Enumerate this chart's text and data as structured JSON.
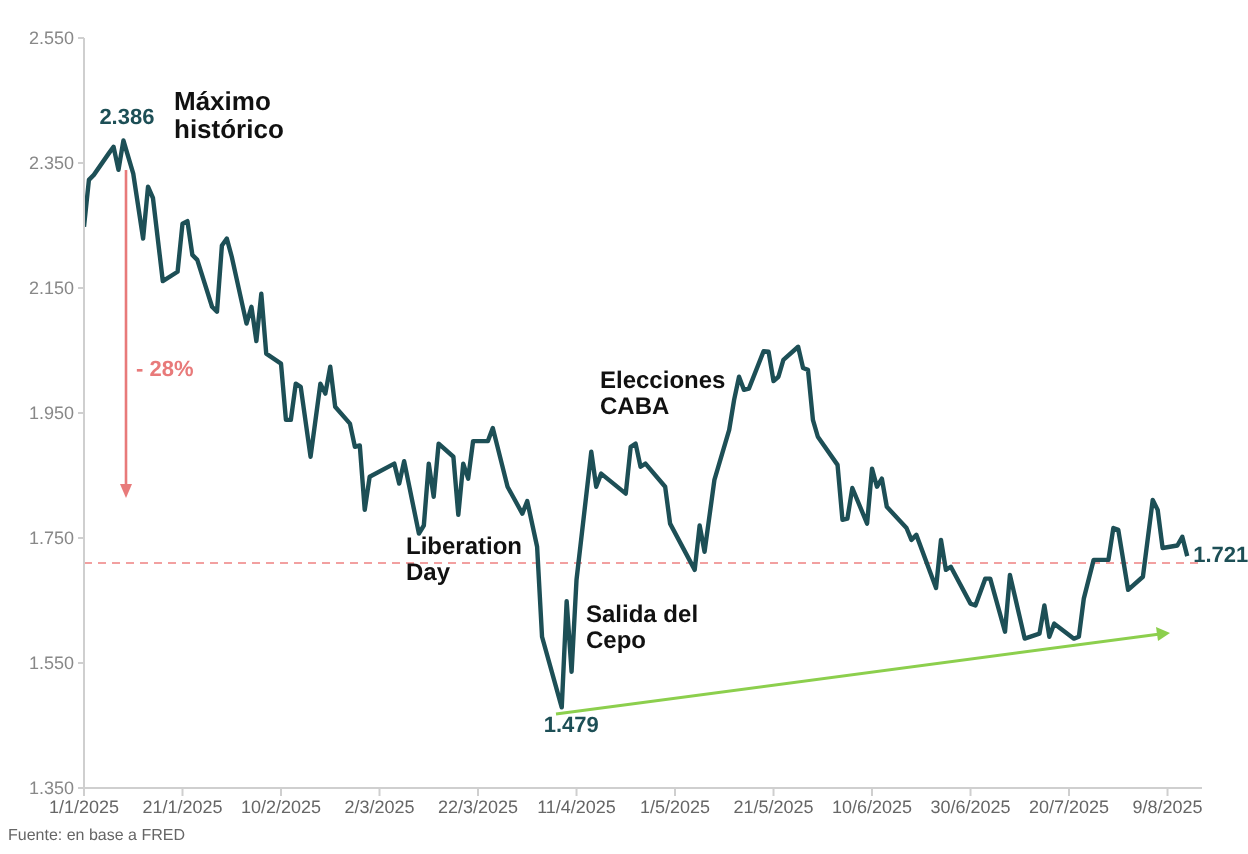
{
  "chart_data": {
    "type": "line",
    "x": [
      "2025-01-01",
      "2025-01-02",
      "2025-01-03",
      "2025-01-06",
      "2025-01-07",
      "2025-01-08",
      "2025-01-09",
      "2025-01-11",
      "2025-01-13",
      "2025-01-14",
      "2025-01-15",
      "2025-01-17",
      "2025-01-20",
      "2025-01-21",
      "2025-01-22",
      "2025-01-23",
      "2025-01-24",
      "2025-01-27",
      "2025-01-28",
      "2025-01-29",
      "2025-01-30",
      "2025-01-31",
      "2025-02-03",
      "2025-02-04",
      "2025-02-05",
      "2025-02-06",
      "2025-02-07",
      "2025-02-10",
      "2025-02-11",
      "2025-02-12",
      "2025-02-13",
      "2025-02-14",
      "2025-02-16",
      "2025-02-18",
      "2025-02-19",
      "2025-02-20",
      "2025-02-21",
      "2025-02-24",
      "2025-02-25",
      "2025-02-26",
      "2025-02-27",
      "2025-02-28",
      "2025-03-05",
      "2025-03-06",
      "2025-03-07",
      "2025-03-10",
      "2025-03-11",
      "2025-03-12",
      "2025-03-13",
      "2025-03-14",
      "2025-03-17",
      "2025-03-18",
      "2025-03-19",
      "2025-03-20",
      "2025-03-21",
      "2025-03-24",
      "2025-03-25",
      "2025-03-28",
      "2025-03-31",
      "2025-04-01",
      "2025-04-03",
      "2025-04-04",
      "2025-04-08",
      "2025-04-09",
      "2025-04-10",
      "2025-04-11",
      "2025-04-14",
      "2025-04-15",
      "2025-04-16",
      "2025-04-21",
      "2025-04-22",
      "2025-04-23",
      "2025-04-24",
      "2025-04-25",
      "2025-04-29",
      "2025-04-30",
      "2025-05-05",
      "2025-05-06",
      "2025-05-07",
      "2025-05-09",
      "2025-05-12",
      "2025-05-13",
      "2025-05-14",
      "2025-05-15",
      "2025-05-16",
      "2025-05-19",
      "2025-05-20",
      "2025-05-21",
      "2025-05-22",
      "2025-05-23",
      "2025-05-26",
      "2025-05-27",
      "2025-05-28",
      "2025-05-29",
      "2025-05-30",
      "2025-06-03",
      "2025-06-04",
      "2025-06-05",
      "2025-06-06",
      "2025-06-09",
      "2025-06-10",
      "2025-06-11",
      "2025-06-12",
      "2025-06-13",
      "2025-06-17",
      "2025-06-18",
      "2025-06-19",
      "2025-06-23",
      "2025-06-24",
      "2025-06-25",
      "2025-06-26",
      "2025-06-30",
      "2025-07-01",
      "2025-07-03",
      "2025-07-04",
      "2025-07-07",
      "2025-07-08",
      "2025-07-11",
      "2025-07-14",
      "2025-07-15",
      "2025-07-16",
      "2025-07-17",
      "2025-07-21",
      "2025-07-22",
      "2025-07-23",
      "2025-07-25",
      "2025-07-28",
      "2025-07-29",
      "2025-07-30",
      "2025-08-01",
      "2025-08-04",
      "2025-08-06",
      "2025-08-07",
      "2025-08-08",
      "2025-08-11",
      "2025-08-12",
      "2025-08-13"
    ],
    "series": [
      {
        "color": "#1d4f56",
        "values": [
          2248,
          2323,
          2331,
          2365,
          2376,
          2339,
          2386,
          2333,
          2229,
          2312,
          2294,
          2161,
          2176,
          2253,
          2257,
          2203,
          2195,
          2120,
          2112,
          2218,
          2229,
          2200,
          2093,
          2120,
          2065,
          2141,
          2045,
          2029,
          1939,
          1939,
          1997,
          1992,
          1880,
          1997,
          1981,
          2024,
          1960,
          1933,
          1896,
          1898,
          1795,
          1848,
          1869,
          1837,
          1873,
          1757,
          1770,
          1869,
          1816,
          1901,
          1880,
          1787,
          1869,
          1845,
          1905,
          1905,
          1926,
          1832,
          1789,
          1809,
          1736,
          1592,
          1479,
          1649,
          1536,
          1683,
          1888,
          1832,
          1853,
          1821,
          1896,
          1901,
          1864,
          1869,
          1832,
          1773,
          1699,
          1770,
          1728,
          1843,
          1923,
          1971,
          2008,
          1987,
          1989,
          2049,
          2048,
          2001,
          2008,
          2035,
          2056,
          2022,
          2019,
          1939,
          1912,
          1867,
          1779,
          1781,
          1830,
          1773,
          1861,
          1832,
          1845,
          1800,
          1766,
          1747,
          1755,
          1670,
          1747,
          1699,
          1704,
          1645,
          1642,
          1685,
          1685,
          1600,
          1691,
          1589,
          1597,
          1642,
          1592,
          1613,
          1589,
          1592,
          1653,
          1715,
          1715,
          1766,
          1763,
          1667,
          1688,
          1811,
          1795,
          1734,
          1738,
          1752,
          1721
        ]
      }
    ],
    "xlim": [
      "2025-01-01",
      "2025-08-16"
    ],
    "xticks": [
      {
        "value": "2025-01-01",
        "label": "1/1/2025"
      },
      {
        "value": "2025-01-21",
        "label": "21/1/2025"
      },
      {
        "value": "2025-02-10",
        "label": "10/2/2025"
      },
      {
        "value": "2025-03-02",
        "label": "2/3/2025"
      },
      {
        "value": "2025-03-22",
        "label": "22/3/2025"
      },
      {
        "value": "2025-04-11",
        "label": "11/4/2025"
      },
      {
        "value": "2025-05-01",
        "label": "1/5/2025"
      },
      {
        "value": "2025-05-21",
        "label": "21/5/2025"
      },
      {
        "value": "2025-06-10",
        "label": "10/6/2025"
      },
      {
        "value": "2025-06-30",
        "label": "30/6/2025"
      },
      {
        "value": "2025-07-20",
        "label": "20/7/2025"
      },
      {
        "value": "2025-08-09",
        "label": "9/8/2025"
      }
    ],
    "ylim": [
      1350,
      2550
    ],
    "yticks": [
      {
        "value": 1350,
        "label": "1.350"
      },
      {
        "value": 1550,
        "label": "1.550"
      },
      {
        "value": 1750,
        "label": "1.750"
      },
      {
        "value": 1950,
        "label": "1.950"
      },
      {
        "value": 2150,
        "label": "2.150"
      },
      {
        "value": 2350,
        "label": "2.350"
      },
      {
        "value": 2550,
        "label": "2.550"
      }
    ],
    "ref_lines": [
      {
        "axis": "y",
        "value": 1710,
        "color": "#f2a0a0",
        "line_style": "dashed"
      }
    ],
    "grid": false,
    "legend": false,
    "marker": "none",
    "line_style": "solid",
    "annotations": [
      {
        "text": "2.386",
        "x": "2025-01-09",
        "y": 2386
      },
      "Máximo histórico",
      "- 28%",
      "Elecciones CABA",
      "Liberation Day",
      "Salida del Cepo",
      {
        "text": "1.479",
        "x": "2025-04-08",
        "y": 1479
      },
      {
        "text": "1.721",
        "x": "2025-08-13",
        "y": 1721
      },
      "Fuente: en base a FRED"
    ]
  }
}
